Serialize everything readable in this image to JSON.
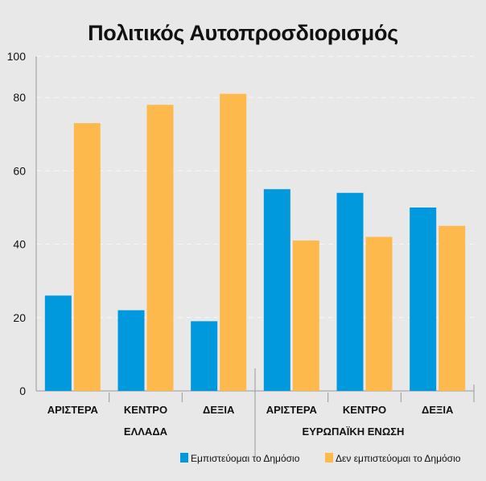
{
  "chart_data": {
    "type": "bar",
    "title": "Πολιτικός Αυτοπροσδιορισμός",
    "xlabel": "",
    "ylabel": "",
    "ylim": [
      0,
      100
    ],
    "yticks": [
      0,
      20,
      40,
      60,
      80,
      100
    ],
    "grid": true,
    "legend_position": "bottom-right",
    "categories": [
      "ΑΡΙΣΤΕΡΑ",
      "ΚΕΝΤΡΟ",
      "ΔΕΞΙΑ",
      "ΑΡΙΣΤΕΡΑ",
      "ΚΕΝΤΡΟ",
      "ΔΕΞΙΑ"
    ],
    "groups": [
      {
        "label": "ΕΛΛΑΔΑ",
        "categories": [
          0,
          1,
          2
        ]
      },
      {
        "label": "ΕΥΡΩΠΑΪΚΗ ΕΝΩΣΗ",
        "categories": [
          3,
          4,
          5
        ]
      }
    ],
    "series": [
      {
        "name": "Εμπιστεύομαι το Δημόσιο",
        "color": "#0099dd",
        "values": [
          26,
          22,
          19,
          55,
          54,
          50
        ]
      },
      {
        "name": "Δεν εμπιστεύομαι το Δημόσιο",
        "color": "#fdb94b",
        "values": [
          73,
          78,
          81,
          41,
          42,
          45
        ]
      }
    ]
  }
}
